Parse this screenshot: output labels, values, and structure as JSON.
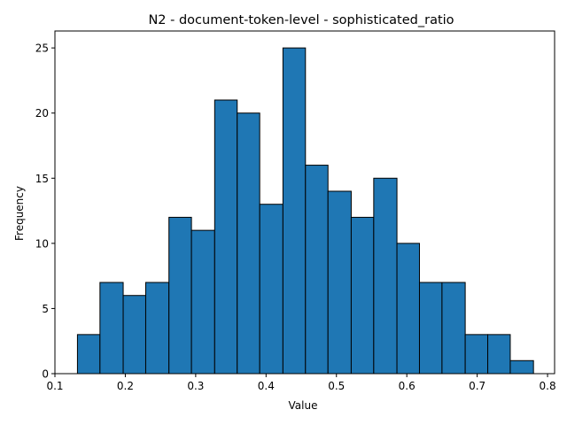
{
  "chart_data": {
    "type": "bar",
    "title": "N2 - document-token-level - sophisticated_ratio",
    "xlabel": "Value",
    "ylabel": "Frequency",
    "xlim": [
      0.1,
      0.81
    ],
    "ylim": [
      0,
      26.3
    ],
    "x_ticks": [
      "0.1",
      "0.2",
      "0.3",
      "0.4",
      "0.5",
      "0.6",
      "0.7",
      "0.8"
    ],
    "y_ticks": [
      "0",
      "5",
      "10",
      "15",
      "20",
      "25"
    ],
    "bin_edges": [
      0.132,
      0.164,
      0.197,
      0.229,
      0.262,
      0.294,
      0.327,
      0.359,
      0.391,
      0.424,
      0.456,
      0.488,
      0.521,
      0.553,
      0.586,
      0.618,
      0.65,
      0.683,
      0.715,
      0.747,
      0.78
    ],
    "values": [
      3,
      7,
      6,
      7,
      12,
      11,
      21,
      20,
      13,
      25,
      16,
      14,
      12,
      15,
      10,
      7,
      7,
      3,
      3,
      1
    ],
    "bar_color": "#1f77b4",
    "edge_color": "#000000",
    "grid": false,
    "legend": "none"
  }
}
